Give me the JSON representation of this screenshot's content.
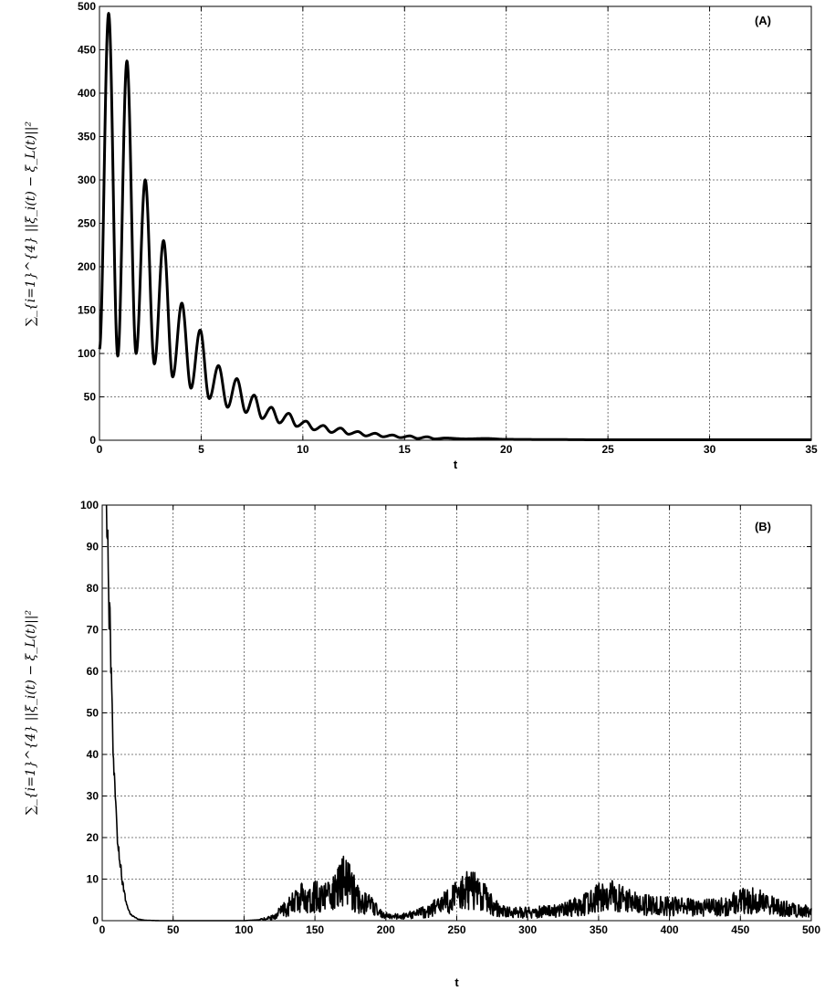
{
  "chart_data": [
    {
      "type": "line",
      "panel_label": "(A)",
      "xlabel": "t",
      "ylabel": "∑_{i=1}^{4} ||ξ_i(t) − ξ_L(t)||²",
      "xlim": [
        0,
        35
      ],
      "ylim": [
        0,
        500
      ],
      "xticks": [
        "0",
        "5",
        "10",
        "15",
        "20",
        "25",
        "30",
        "35"
      ],
      "yticks": [
        "0",
        "50",
        "100",
        "150",
        "200",
        "250",
        "300",
        "350",
        "400",
        "450",
        "500"
      ],
      "grid": true,
      "series": [
        {
          "x": [
            0,
            0.45,
            0.9,
            1.35,
            1.8,
            2.25,
            2.7,
            3.15,
            3.6,
            4.05,
            4.5,
            4.95,
            5.4,
            5.85,
            6.3,
            6.75,
            7.2,
            7.6,
            8.0,
            8.45,
            8.85,
            9.3,
            9.7,
            10.15,
            10.55,
            11.0,
            11.4,
            11.85,
            12.25,
            12.7,
            13.1,
            13.55,
            13.95,
            14.4,
            14.8,
            15.25,
            15.65,
            16.1,
            16.5,
            17.0,
            18.0,
            19.0,
            20.0,
            22.0,
            25.0,
            30.0,
            35.0
          ],
          "y": [
            105,
            492,
            97,
            437,
            100,
            300,
            88,
            230,
            73,
            158,
            60,
            127,
            48,
            86,
            38,
            71,
            32,
            52,
            25,
            38,
            20,
            31,
            16,
            22,
            12,
            17,
            9,
            14,
            7,
            10,
            5,
            8,
            4,
            6,
            3,
            5,
            2,
            4,
            1.5,
            2.5,
            1.5,
            2,
            1,
            0.8,
            0.5,
            0.5,
            0.5
          ]
        }
      ]
    },
    {
      "type": "line",
      "panel_label": "(B)",
      "xlabel": "t",
      "ylabel": "∑_{i=1}^{4} ||ξ_i(t) − ξ_L(t)||²",
      "xlim": [
        0,
        500
      ],
      "ylim": [
        0,
        100
      ],
      "xticks": [
        "0",
        "50",
        "100",
        "150",
        "200",
        "250",
        "300",
        "350",
        "400",
        "450",
        "500"
      ],
      "yticks": [
        "0",
        "10",
        "20",
        "30",
        "40",
        "50",
        "60",
        "70",
        "80",
        "90",
        "100"
      ],
      "grid": true,
      "series": [
        {
          "x": [
            3,
            5,
            7,
            9,
            11,
            14,
            17,
            20,
            25,
            30,
            40,
            60,
            80,
            100,
            110,
            120,
            130,
            140,
            150,
            160,
            165,
            170,
            175,
            180,
            190,
            200,
            210,
            220,
            230,
            240,
            250,
            260,
            270,
            280,
            290,
            300,
            320,
            340,
            350,
            360,
            370,
            380,
            400,
            420,
            440,
            450,
            460,
            470,
            480,
            490,
            500
          ],
          "y": [
            100,
            75,
            48,
            30,
            19,
            10,
            4,
            1.5,
            0.4,
            0.1,
            0,
            0,
            0,
            0,
            0.2,
            1,
            4,
            7,
            7.5,
            8,
            9,
            13,
            10,
            7,
            4.5,
            1.5,
            1.2,
            2,
            3,
            5,
            8,
            10,
            7,
            3,
            2.5,
            2.5,
            3,
            5,
            7,
            8,
            6,
            5,
            4.5,
            4,
            4.5,
            6,
            6.5,
            5,
            4,
            3,
            3
          ]
        }
      ]
    }
  ]
}
